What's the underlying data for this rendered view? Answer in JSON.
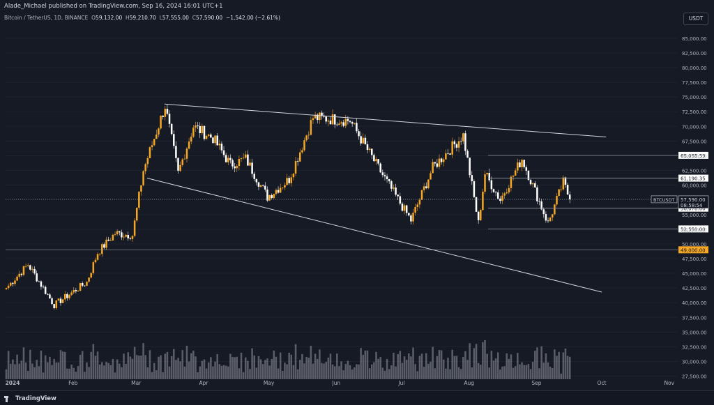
{
  "header": {
    "publisher_line": "Alade_Michael published on TradingView.com, Sep 16, 2024 16:01 UTC+1",
    "symbol": "Bitcoin / TetherUS, 1D, BINANCE",
    "ohlc": {
      "o_label": "O",
      "o": "59,132.00",
      "h_label": "H",
      "h": "59,210.70",
      "l_label": "L",
      "l": "57,555.00",
      "c_label": "C",
      "c": "57,590.00",
      "change": "−1,542.00 (−2.61%)"
    },
    "currency_button": "USDT"
  },
  "footer": {
    "logo_text": "TradingView"
  },
  "colors": {
    "background": "#161a25",
    "candle_up": "#f5a623",
    "candle_down": "#ffffff",
    "volume": "#9598a1",
    "line": "#d1d4dc",
    "axis_text": "#b2b5be",
    "price_label_bg": "#ffffff",
    "price_label_text": "#131722"
  },
  "chart_data": {
    "type": "candlestick",
    "symbol_label": "BTCUSDT",
    "timeframe": "1D",
    "y_axis": {
      "ticks": [
        "85,000.00",
        "82,500.00",
        "80,000.00",
        "77,500.00",
        "75,000.00",
        "72,500.00",
        "70,000.00",
        "67,500.00",
        "65,000.00",
        "62,500.00",
        "60,000.00",
        "57,500.00",
        "55,000.00",
        "52,500.00",
        "50,000.00",
        "47,500.00",
        "45,000.00",
        "42,500.00",
        "40,000.00",
        "37,500.00",
        "35,000.00",
        "32,500.00",
        "30,000.00",
        "27,500.00"
      ],
      "tick_values": [
        85000,
        82500,
        80000,
        77500,
        75000,
        72500,
        70000,
        67500,
        65000,
        62500,
        60000,
        57500,
        55000,
        52500,
        50000,
        47500,
        45000,
        42500,
        40000,
        37500,
        35000,
        32500,
        30000,
        27500
      ],
      "ylim": [
        26500,
        87000
      ]
    },
    "x_axis": {
      "labels": [
        "2024",
        "Feb",
        "Mar",
        "Apr",
        "May",
        "Jun",
        "Jul",
        "Aug",
        "Sep",
        "Oct",
        "Nov"
      ],
      "start_date": "2024-01-01",
      "end_date": "2024-11-03"
    },
    "series_key_points": [
      {
        "date": "2024-01-01",
        "close": 42500
      },
      {
        "date": "2024-01-11",
        "close": 46500
      },
      {
        "date": "2024-01-23",
        "close": 39600
      },
      {
        "date": "2024-02-07",
        "close": 43500
      },
      {
        "date": "2024-02-12",
        "close": 48500
      },
      {
        "date": "2024-02-20",
        "close": 51800
      },
      {
        "date": "2024-02-28",
        "close": 51500
      },
      {
        "date": "2024-03-04",
        "close": 62500
      },
      {
        "date": "2024-03-14",
        "close": 73500
      },
      {
        "date": "2024-03-20",
        "close": 62000
      },
      {
        "date": "2024-03-27",
        "close": 70000
      },
      {
        "date": "2024-04-05",
        "close": 68000
      },
      {
        "date": "2024-04-13",
        "close": 63500
      },
      {
        "date": "2024-04-20",
        "close": 64500
      },
      {
        "date": "2024-04-30",
        "close": 58000
      },
      {
        "date": "2024-05-10",
        "close": 61000
      },
      {
        "date": "2024-05-21",
        "close": 71500
      },
      {
        "date": "2024-06-07",
        "close": 71000
      },
      {
        "date": "2024-06-15",
        "close": 66000
      },
      {
        "date": "2024-06-24",
        "close": 60500
      },
      {
        "date": "2024-07-05",
        "close": 54000
      },
      {
        "date": "2024-07-15",
        "close": 63000
      },
      {
        "date": "2024-07-29",
        "close": 68500
      },
      {
        "date": "2024-08-05",
        "close": 53500
      },
      {
        "date": "2024-08-08",
        "close": 62000
      },
      {
        "date": "2024-08-15",
        "close": 57500
      },
      {
        "date": "2024-08-25",
        "close": 64500
      },
      {
        "date": "2024-09-06",
        "close": 53500
      },
      {
        "date": "2024-09-13",
        "close": 60500
      },
      {
        "date": "2024-09-16",
        "close": 57590
      }
    ],
    "horizontal_levels": [
      {
        "value": 65065.59,
        "label": "65,065.59"
      },
      {
        "value": 61190.35,
        "label": "61,190.35"
      },
      {
        "value": 56078.0,
        "label": "56,078.00"
      },
      {
        "value": 52550.0,
        "label": "52,550.00"
      },
      {
        "value": 49000.0,
        "label": "49,000.00",
        "style": "dotted",
        "color": "#f5a623"
      }
    ],
    "current_price": {
      "value": 57590.0,
      "label": "57,590.00",
      "countdown": "08:58:54"
    },
    "trendlines": [
      {
        "from": {
          "date": "2024-03-14",
          "price": 73800
        },
        "to": {
          "date": "2024-10-03",
          "price": 68200
        }
      },
      {
        "from": {
          "date": "2024-03-06",
          "price": 61200
        },
        "to": {
          "date": "2024-10-01",
          "price": 41800
        }
      }
    ]
  }
}
